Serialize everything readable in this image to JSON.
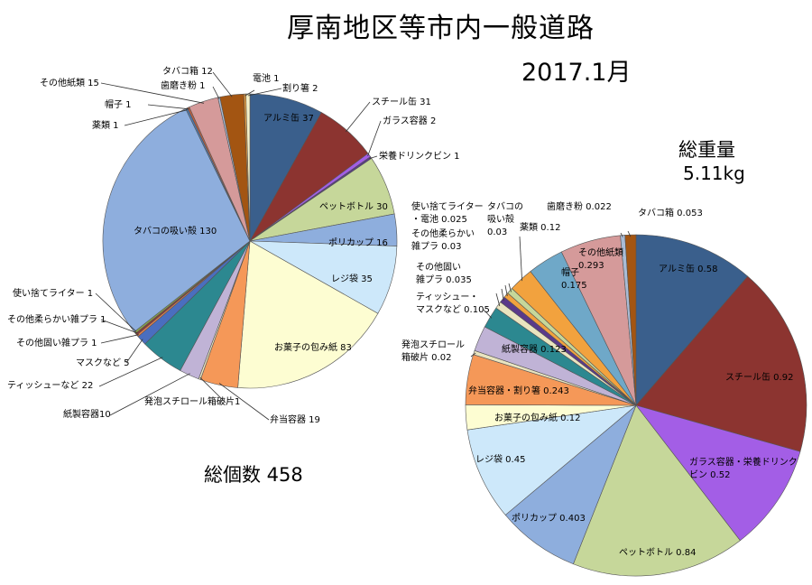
{
  "title": "厚南地区等市内一般道路",
  "date": "2017.1月",
  "totals": {
    "count_label": "総個数 458",
    "weight_title": "総重量",
    "weight_value": "5.11kg"
  },
  "chart_data": [
    {
      "type": "pie",
      "id": "count",
      "start_direction": "clockwise from 12 o'clock",
      "slices": [
        {
          "label": "アルミ缶",
          "value": 37,
          "display": "アルミ缶 37",
          "color": "#3a5f8c"
        },
        {
          "label": "スチール缶",
          "value": 31,
          "display": "スチール缶 31",
          "color": "#8c3430"
        },
        {
          "label": "ガラス容器",
          "value": 2,
          "display": "ガラス容器 2",
          "color": "#a35ee6"
        },
        {
          "label": "栄養ドリンクビン",
          "value": 1,
          "display": "栄養ドリンクビン 1",
          "color": "#5a3a8a"
        },
        {
          "label": "ペットボトル",
          "value": 30,
          "display": "ペットボトル 30",
          "color": "#c6d79a"
        },
        {
          "label": "ポリカップ",
          "value": 16,
          "display": "ポリカップ 16",
          "color": "#8eaedd"
        },
        {
          "label": "レジ袋",
          "value": 35,
          "display": "レジ袋 35",
          "color": "#cde8fa"
        },
        {
          "label": "お菓子の包み紙",
          "value": 83,
          "display": "お菓子の包み紙 83",
          "color": "#fdfdd2"
        },
        {
          "label": "弁当容器",
          "value": 19,
          "display": "弁当容器 19",
          "color": "#f59858"
        },
        {
          "label": "発泡スチロール箱破片",
          "value": 1,
          "display": "発泡スチロール箱破片1",
          "color": "#e9e4bf"
        },
        {
          "label": "紙製容器",
          "value": 10,
          "display": "紙製容器10",
          "color": "#c0b3d6"
        },
        {
          "label": "ティッシューなど",
          "value": 22,
          "display": "ティッシューなど 22",
          "color": "#2c8890"
        },
        {
          "label": "マスクなど",
          "value": 5,
          "display": "マスクなど 5",
          "color": "#4a6ebf"
        },
        {
          "label": "その他固い雑プラ",
          "value": 1,
          "display": "その他固い雑プラ 1",
          "color": "#e8804a"
        },
        {
          "label": "その他柔らかい雑プラ",
          "value": 1,
          "display": "その他柔らかい雑プラ 1",
          "color": "#8b3b35"
        },
        {
          "label": "使い捨てライター",
          "value": 1,
          "display": "使い捨てライター 1",
          "color": "#8aa54a"
        },
        {
          "label": "タバコの吸い殻",
          "value": 130,
          "display": "タバコの吸い殻 130",
          "color": "#8eaedd"
        },
        {
          "label": "薬類",
          "value": 1,
          "display": "薬類 1",
          "color": "#4e7ab0"
        },
        {
          "label": "帽子",
          "value": 1,
          "display": "帽子 1",
          "color": "#c06040"
        },
        {
          "label": "その他紙類",
          "value": 15,
          "display": "その他紙類 15",
          "color": "#d59a9a"
        },
        {
          "label": "歯磨き粉",
          "value": 1,
          "display": "歯磨き粉 1",
          "color": "#a9bcd6"
        },
        {
          "label": "タバコ箱",
          "value": 12,
          "display": "タバコ箱 12",
          "color": "#a35512"
        },
        {
          "label": "電池",
          "value": 1,
          "display": "電池 1",
          "color": "#f2a23e"
        },
        {
          "label": "割り箸",
          "value": 2,
          "display": "割り箸 2",
          "color": "#f5f0c8"
        }
      ]
    },
    {
      "type": "pie",
      "id": "weight",
      "unit": "kg",
      "start_direction": "clockwise from 12 o'clock",
      "slices": [
        {
          "label": "アルミ缶",
          "value": 0.58,
          "display": "アルミ缶 0.58",
          "color": "#3a5f8c"
        },
        {
          "label": "スチール缶",
          "value": 0.92,
          "display": "スチール缶 0.92",
          "color": "#8c3430"
        },
        {
          "label": "ガラス容器・栄養ドリンクビン",
          "value": 0.52,
          "display": "ガラス容器・栄養ドリンク\nビン 0.52",
          "color": "#a35ee6"
        },
        {
          "label": "ペットボトル",
          "value": 0.84,
          "display": "ペットボトル 0.84",
          "color": "#c6d79a"
        },
        {
          "label": "ポリカップ",
          "value": 0.403,
          "display": "ポリカップ 0.403",
          "color": "#8eaedd"
        },
        {
          "label": "レジ袋",
          "value": 0.45,
          "display": "レジ袋 0.45",
          "color": "#cde8fa"
        },
        {
          "label": "お菓子の包み紙",
          "value": 0.12,
          "display": "お菓子の包み紙 0.12",
          "color": "#fdfdd2"
        },
        {
          "label": "弁当容器・割り箸",
          "value": 0.243,
          "display": "弁当容器・割り箸 0.243",
          "color": "#f59858"
        },
        {
          "label": "発泡スチロール箱破片",
          "value": 0.02,
          "display": "発泡スチロール\n箱破片 0.02",
          "color": "#e9e4bf"
        },
        {
          "label": "紙製容器",
          "value": 0.123,
          "display": "紙製容器 0.123",
          "color": "#c0b3d6"
        },
        {
          "label": "ティッシュー・マスクなど",
          "value": 0.105,
          "display": "ティッシュー・\nマスクなど 0.105",
          "color": "#2c8890"
        },
        {
          "label": "その他固い雑プラ",
          "value": 0.035,
          "display": "その他固い\n雑プラ 0.035",
          "color": "#e9e4bf"
        },
        {
          "label": "その他柔らかい雑プラ",
          "value": 0.03,
          "display": "その他柔らかい\n雑プラ 0.03",
          "color": "#5a3a8a"
        },
        {
          "label": "使い捨てライター・電池",
          "value": 0.025,
          "display": "使い捨てライター\n・電池 0.025",
          "color": "#f2a23e"
        },
        {
          "label": "タバコの吸い殻",
          "value": 0.03,
          "display": "タバコの\n吸い殻\n0.03",
          "color": "#c6d79a"
        },
        {
          "label": "薬類",
          "value": 0.12,
          "display": "薬類 0.12",
          "color": "#f2a23e"
        },
        {
          "label": "帽子",
          "value": 0.175,
          "display": "帽子\n0.175",
          "color": "#6fa8c8"
        },
        {
          "label": "その他紙類",
          "value": 0.293,
          "display": "その他紙類\n0.293",
          "color": "#d59a9a"
        },
        {
          "label": "歯磨き粉",
          "value": 0.022,
          "display": "歯磨き粉 0.022",
          "color": "#a9bcd6"
        },
        {
          "label": "タバコ箱",
          "value": 0.053,
          "display": "タバコ箱 0.053",
          "color": "#a35512"
        }
      ]
    }
  ]
}
